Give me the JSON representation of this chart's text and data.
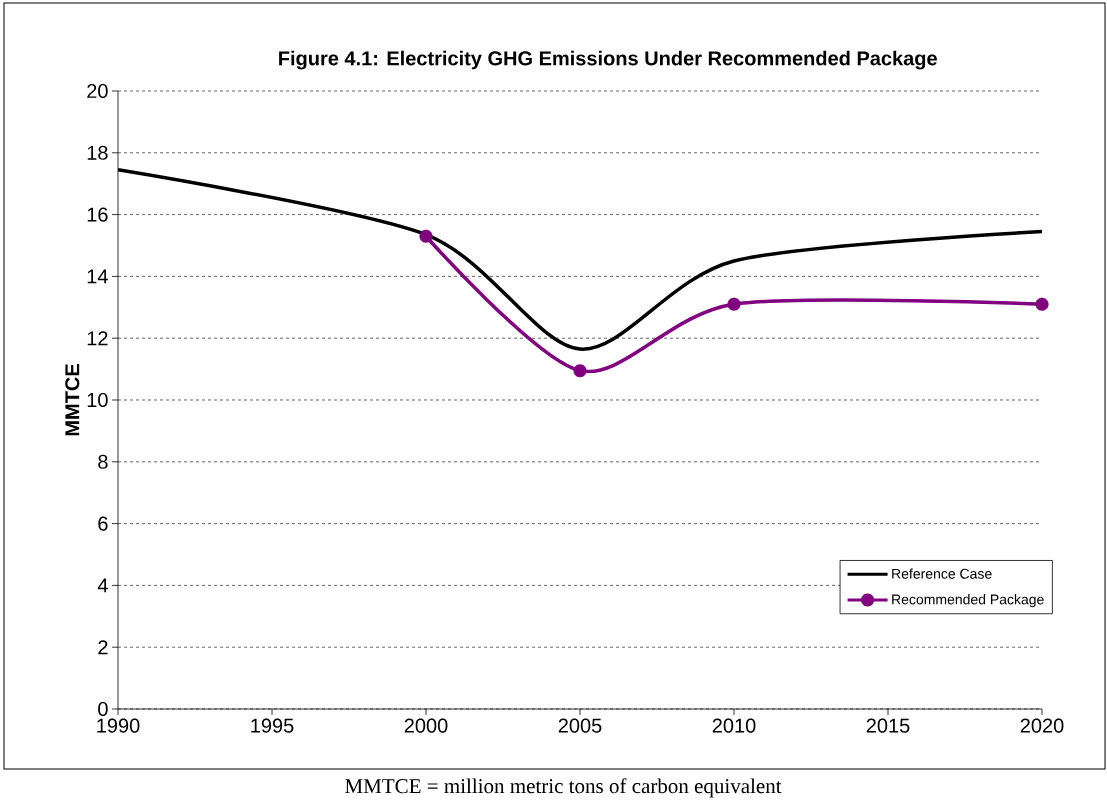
{
  "chart_data": {
    "type": "line",
    "title": "Figure 4.1: Electricity GHG Emissions Under Recommended Package",
    "ylabel": "MMTCE",
    "xlim": [
      1990,
      2020
    ],
    "xticks": [
      1990,
      1995,
      2000,
      2005,
      2010,
      2015,
      2020
    ],
    "ylim": [
      0,
      20
    ],
    "yticks": [
      0,
      2,
      4,
      6,
      8,
      10,
      12,
      14,
      16,
      18,
      20
    ],
    "grid": "y",
    "legend": "bottom right",
    "series": [
      {
        "name": "Reference Case",
        "color": "#000000",
        "marker": "none",
        "x": [
          1990,
          2000,
          2005,
          2010,
          2020
        ],
        "values": [
          17.45,
          15.35,
          11.65,
          14.5,
          15.45
        ]
      },
      {
        "name": "Recommended Package",
        "color": "#800080",
        "marker": "circle",
        "x": [
          2000,
          2005,
          2010,
          2020
        ],
        "values": [
          15.3,
          10.95,
          13.1,
          13.1
        ]
      }
    ],
    "annotations": [
      "MMTCE = million metric tons of carbon equivalent"
    ]
  }
}
